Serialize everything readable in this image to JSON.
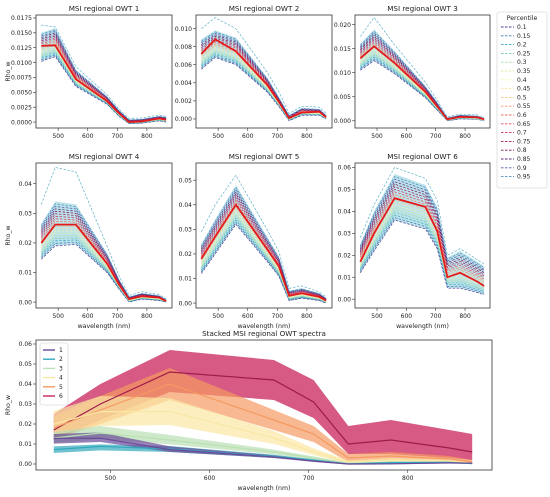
{
  "wavelength_nm": [
    443,
    490,
    560,
    665,
    705,
    740,
    783,
    842,
    865
  ],
  "colors": {
    "median": "#e31a1c",
    "band": "#a6d8e3",
    "percentile_palette": [
      "#4c3a8f",
      "#3f77b3",
      "#38a5c2",
      "#6fc9b4",
      "#a9dca9",
      "#d8efa6",
      "#f3f4b0",
      "#fde4a0",
      "#fdc07f",
      "#f99b68",
      "#f06f56",
      "#dc4a5a",
      "#c12a60",
      "#9e1b5e",
      "#7a1254",
      "#5d2a7a",
      "#4d5aa6",
      "#4c8cc0",
      "#5fb2c8"
    ],
    "owt_colors": [
      "#6a4a98",
      "#32a9bd",
      "#b9e0b2",
      "#fbe7a4",
      "#f59a62",
      "#c8235a"
    ]
  },
  "legend": {
    "title": "Percentile",
    "labels": [
      "0.1",
      "0.15",
      "0.2",
      "0.25",
      "0.3",
      "0.35",
      "0.4",
      "0.45",
      "0.5",
      "0.55",
      "0.6",
      "0.65",
      "0.7",
      "0.75",
      "0.8",
      "0.85",
      "0.9",
      "0.95"
    ]
  },
  "stacked_legend": [
    "1",
    "2",
    "3",
    "4",
    "5",
    "6"
  ],
  "chart_data": [
    {
      "type": "line",
      "title": "MSI regional OWT 1",
      "ylabel": "Rho_w",
      "xlabel": "",
      "ylim": [
        -0.001,
        0.018
      ],
      "yticks": [
        "0.0000",
        "0.0025",
        "0.0050",
        "0.0075",
        "0.0100",
        "0.0125",
        "0.0150",
        "0.0175"
      ],
      "ytick_values": [
        0,
        0.0025,
        0.005,
        0.0075,
        0.01,
        0.0125,
        0.015,
        0.0175
      ],
      "xticks": [
        "500",
        "600",
        "700",
        "800"
      ],
      "median": [
        0.0128,
        0.0129,
        0.0072,
        0.0035,
        0.0015,
        0.0,
        0.0001,
        0.0006,
        0.0004
      ],
      "low": [
        0.0102,
        0.011,
        0.006,
        0.003,
        0.001,
        -0.0003,
        -0.0002,
        0.0002,
        0.0
      ],
      "high": [
        0.015,
        0.0158,
        0.0088,
        0.0043,
        0.002,
        0.0004,
        0.0005,
        0.001,
        0.0008
      ],
      "max": [
        0.0163,
        0.016,
        0.0093,
        0.0046,
        0.0022,
        0.0006,
        0.0007,
        0.0012,
        0.0009
      ]
    },
    {
      "type": "line",
      "title": "MSI regional OWT 2",
      "ylabel": "",
      "xlabel": "",
      "ylim": [
        -0.001,
        0.0115
      ],
      "yticks": [
        "0.000",
        "0.002",
        "0.004",
        "0.006",
        "0.008",
        "0.010"
      ],
      "ytick_values": [
        0,
        0.002,
        0.004,
        0.006,
        0.008,
        0.01
      ],
      "xticks": [
        "500",
        "600",
        "700",
        "800"
      ],
      "median": [
        0.0072,
        0.0088,
        0.0075,
        0.0038,
        0.0019,
        0.0001,
        0.0007,
        0.0008,
        0.0002
      ],
      "low": [
        0.0055,
        0.0068,
        0.006,
        0.003,
        0.0014,
        -0.0002,
        0.0004,
        0.0004,
        0.0
      ],
      "high": [
        0.0088,
        0.0098,
        0.009,
        0.0046,
        0.0024,
        0.0004,
        0.0012,
        0.0011,
        0.0004
      ],
      "max": [
        0.01,
        0.0112,
        0.01,
        0.0052,
        0.003,
        0.0006,
        0.0014,
        0.0013,
        0.0006
      ]
    },
    {
      "type": "line",
      "title": "MSI regional OWT 3",
      "ylabel": "",
      "xlabel": "",
      "ylim": [
        -0.0015,
        0.022
      ],
      "yticks": [
        "0.000",
        "0.005",
        "0.010",
        "0.015",
        "0.020"
      ],
      "ytick_values": [
        0,
        0.005,
        0.01,
        0.015,
        0.02
      ],
      "xticks": [
        "500",
        "600",
        "700",
        "800"
      ],
      "median": [
        0.013,
        0.0155,
        0.012,
        0.006,
        0.003,
        0.0003,
        0.0008,
        0.0007,
        0.0003
      ],
      "low": [
        0.0105,
        0.0125,
        0.0098,
        0.0048,
        0.0022,
        0.0,
        0.0004,
        0.0003,
        0.0
      ],
      "high": [
        0.016,
        0.019,
        0.0145,
        0.0072,
        0.0038,
        0.0006,
        0.0012,
        0.001,
        0.0005
      ],
      "max": [
        0.0175,
        0.0215,
        0.0158,
        0.008,
        0.0042,
        0.0008,
        0.0014,
        0.0012,
        0.0006
      ]
    },
    {
      "type": "line",
      "title": "MSI regional OWT 4",
      "ylabel": "Rho_w",
      "xlabel": "wavelength (nm)",
      "ylim": [
        -0.002,
        0.047
      ],
      "yticks": [
        "0.00",
        "0.01",
        "0.02",
        "0.03",
        "0.04"
      ],
      "ytick_values": [
        0,
        0.01,
        0.02,
        0.03,
        0.04
      ],
      "xticks": [
        "500",
        "600",
        "700",
        "800"
      ],
      "median": [
        0.02,
        0.0262,
        0.0262,
        0.013,
        0.006,
        0.001,
        0.002,
        0.0015,
        0.0003
      ],
      "low": [
        0.0145,
        0.019,
        0.0195,
        0.01,
        0.0045,
        0.0,
        0.001,
        0.0005,
        0.0
      ],
      "high": [
        0.0265,
        0.034,
        0.033,
        0.0165,
        0.0078,
        0.0018,
        0.003,
        0.0022,
        0.0008
      ],
      "max": [
        0.033,
        0.0455,
        0.044,
        0.019,
        0.009,
        0.0022,
        0.0035,
        0.0025,
        0.001
      ]
    },
    {
      "type": "line",
      "title": "MSI regional OWT 5",
      "ylabel": "",
      "xlabel": "wavelength (nm)",
      "ylim": [
        -0.002,
        0.057
      ],
      "yticks": [
        "0.00",
        "0.01",
        "0.02",
        "0.03",
        "0.04",
        "0.05"
      ],
      "ytick_values": [
        0,
        0.01,
        0.02,
        0.03,
        0.04,
        0.05
      ],
      "xticks": [
        "500",
        "600",
        "700",
        "800"
      ],
      "median": [
        0.018,
        0.027,
        0.04,
        0.022,
        0.015,
        0.003,
        0.004,
        0.0025,
        0.001
      ],
      "low": [
        0.012,
        0.02,
        0.032,
        0.017,
        0.011,
        0.001,
        0.002,
        0.001,
        0.0
      ],
      "high": [
        0.024,
        0.034,
        0.048,
        0.027,
        0.019,
        0.005,
        0.006,
        0.004,
        0.002
      ],
      "max": [
        0.029,
        0.04,
        0.052,
        0.03,
        0.021,
        0.006,
        0.007,
        0.0045,
        0.0025
      ]
    },
    {
      "type": "line",
      "title": "MSI regional OWT 6",
      "ylabel": "",
      "xlabel": "wavelength (nm)",
      "ylim": [
        -0.004,
        0.062
      ],
      "yticks": [
        "0.00",
        "0.01",
        "0.02",
        "0.03",
        "0.04",
        "0.05",
        "0.06"
      ],
      "ytick_values": [
        0,
        0.01,
        0.02,
        0.03,
        0.04,
        0.05,
        0.06
      ],
      "xticks": [
        "500",
        "600",
        "700",
        "800"
      ],
      "median": [
        0.017,
        0.03,
        0.046,
        0.042,
        0.031,
        0.01,
        0.012,
        0.008,
        0.006
      ],
      "low": [
        0.012,
        0.022,
        0.036,
        0.032,
        0.023,
        0.005,
        0.005,
        0.003,
        0.002
      ],
      "high": [
        0.025,
        0.04,
        0.057,
        0.052,
        0.042,
        0.019,
        0.022,
        0.017,
        0.015
      ],
      "max": [
        0.028,
        0.043,
        0.06,
        0.055,
        0.045,
        0.02,
        0.023,
        0.018,
        0.016
      ]
    },
    {
      "type": "area",
      "title": "Stacked MSI regional OWT spectra",
      "ylabel": "Rho_w",
      "xlabel": "wavelength (nm)",
      "ylim": [
        -0.003,
        0.062
      ],
      "yticks": [
        "0.00",
        "0.01",
        "0.02",
        "0.03",
        "0.04",
        "0.05",
        "0.06"
      ],
      "ytick_values": [
        0,
        0.01,
        0.02,
        0.03,
        0.04,
        0.05,
        0.06
      ],
      "xticks": [
        "500",
        "600",
        "700",
        "800"
      ],
      "series": [
        {
          "name": "1",
          "median": [
            0.0128,
            0.0129,
            0.0072,
            0.0035,
            0.0015,
            0.0,
            0.0001,
            0.0006,
            0.0004
          ],
          "low": [
            0.0102,
            0.011,
            0.006,
            0.003,
            0.001,
            -0.0003,
            -0.0002,
            0.0002,
            0.0
          ],
          "high": [
            0.015,
            0.0158,
            0.0088,
            0.0043,
            0.002,
            0.0004,
            0.0005,
            0.001,
            0.0008
          ]
        },
        {
          "name": "2",
          "median": [
            0.0072,
            0.0088,
            0.0075,
            0.0038,
            0.0019,
            0.0001,
            0.0007,
            0.0008,
            0.0002
          ],
          "low": [
            0.0055,
            0.0068,
            0.006,
            0.003,
            0.0014,
            -0.0002,
            0.0004,
            0.0004,
            0.0
          ],
          "high": [
            0.0088,
            0.0098,
            0.009,
            0.0046,
            0.0024,
            0.0004,
            0.0012,
            0.0011,
            0.0004
          ]
        },
        {
          "name": "3",
          "median": [
            0.013,
            0.0155,
            0.012,
            0.006,
            0.003,
            0.0003,
            0.0008,
            0.0007,
            0.0003
          ],
          "low": [
            0.0105,
            0.0125,
            0.0098,
            0.0048,
            0.0022,
            0.0,
            0.0004,
            0.0003,
            0.0
          ],
          "high": [
            0.016,
            0.019,
            0.0145,
            0.0072,
            0.0038,
            0.0006,
            0.0012,
            0.001,
            0.0005
          ]
        },
        {
          "name": "4",
          "median": [
            0.02,
            0.0262,
            0.0262,
            0.013,
            0.006,
            0.001,
            0.002,
            0.0015,
            0.0003
          ],
          "low": [
            0.0145,
            0.019,
            0.0195,
            0.01,
            0.0045,
            0.0,
            0.001,
            0.0005,
            0.0
          ],
          "high": [
            0.0265,
            0.034,
            0.033,
            0.0165,
            0.0078,
            0.0018,
            0.003,
            0.0022,
            0.0008
          ]
        },
        {
          "name": "5",
          "median": [
            0.018,
            0.027,
            0.04,
            0.022,
            0.015,
            0.003,
            0.004,
            0.0025,
            0.001
          ],
          "low": [
            0.012,
            0.02,
            0.032,
            0.017,
            0.011,
            0.001,
            0.002,
            0.001,
            0.0
          ],
          "high": [
            0.024,
            0.034,
            0.048,
            0.027,
            0.019,
            0.005,
            0.006,
            0.004,
            0.002
          ]
        },
        {
          "name": "6",
          "median": [
            0.017,
            0.03,
            0.046,
            0.042,
            0.031,
            0.01,
            0.012,
            0.008,
            0.006
          ],
          "low": [
            0.012,
            0.022,
            0.036,
            0.032,
            0.023,
            0.005,
            0.005,
            0.003,
            0.002
          ],
          "high": [
            0.025,
            0.04,
            0.057,
            0.052,
            0.042,
            0.019,
            0.022,
            0.017,
            0.015
          ]
        }
      ]
    }
  ]
}
